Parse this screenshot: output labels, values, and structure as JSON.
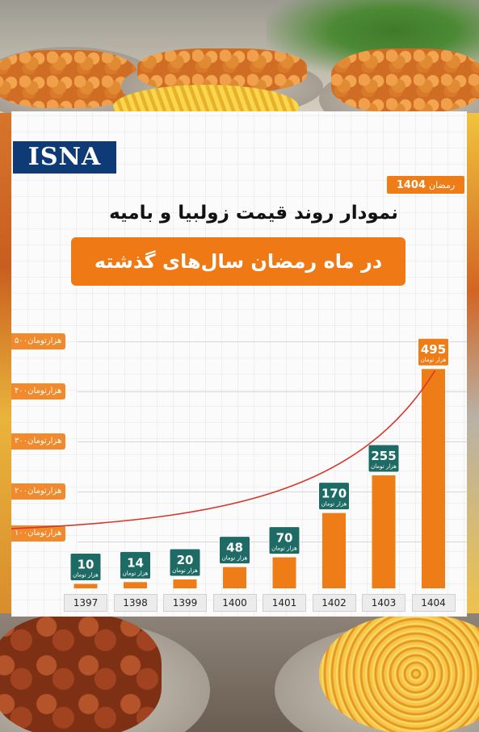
{
  "source_logo": "ISNA",
  "tag": {
    "label": "رمضان",
    "year": "1404"
  },
  "title": "نمودار روند قیمت زولبیا و بامیه",
  "subtitle": "در ماه رمضان سال‌های گذشته",
  "unit_label": "هزار تومان",
  "y_axis_labels": [
    "۱۰۰هزارتومان",
    "۲۰۰هزارتومان",
    "۳۰۰هزارتومان",
    "۴۰۰هزارتومان",
    "۵۰۰هزارتومان"
  ],
  "colors": {
    "bar": "#ef7d17",
    "label_box": "#1e6b65",
    "highlight_box": "#ef7d17",
    "trend_line": "#d8352b",
    "banner": "#ef7a15",
    "logo": "#0e3a75"
  },
  "chart_data": {
    "type": "bar",
    "title": "نمودار روند قیمت زولبیا و بامیه",
    "subtitle": "در ماه رمضان سال‌های گذشته",
    "categories": [
      "1397",
      "1398",
      "1399",
      "1400",
      "1401",
      "1402",
      "1403",
      "1404"
    ],
    "values": [
      10,
      14,
      20,
      48,
      70,
      170,
      255,
      495
    ],
    "value_unit": "هزار تومان",
    "ylim": [
      0,
      520
    ],
    "yticks": [
      100,
      200,
      300,
      400,
      500
    ],
    "trend_line": true,
    "grid": true,
    "legend": "none"
  }
}
